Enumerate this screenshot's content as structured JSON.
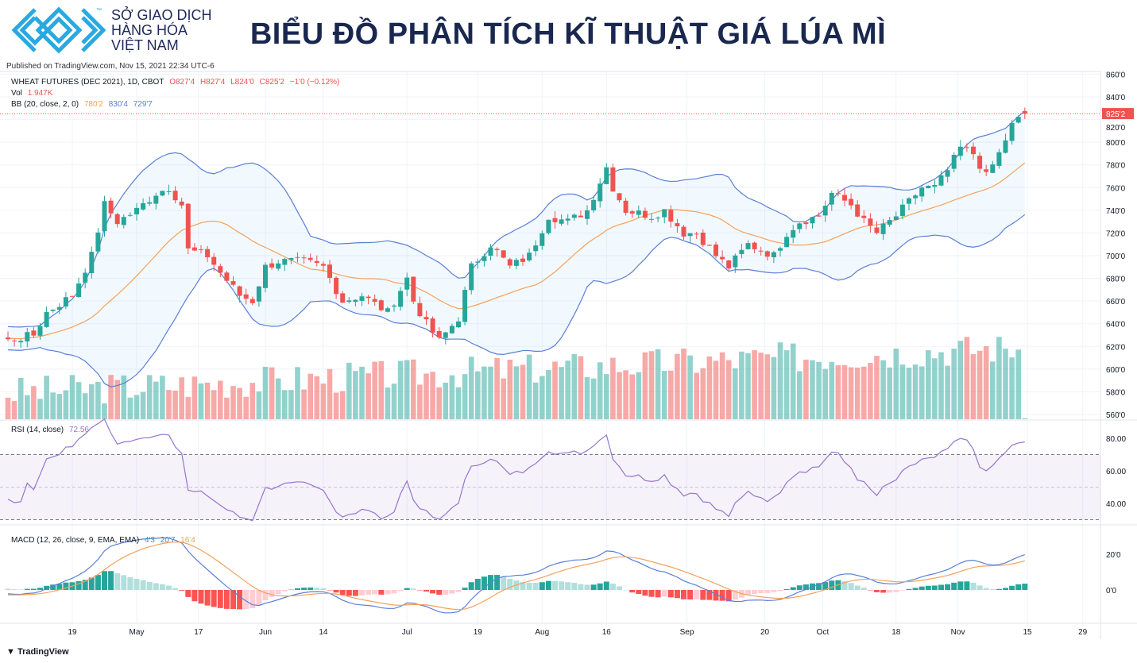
{
  "header": {
    "org_lines": [
      "SỞ GIAO DỊCH",
      "HÀNG HÓA",
      "VIỆT NAM"
    ],
    "trademark": "™",
    "title": "BIỂU ĐỒ PHÂN TÍCH KĨ THUẬT GIÁ LÚA MÌ",
    "published": "Published on TradingView.com, Nov 15, 2021 22:34 UTC-6"
  },
  "legend": {
    "symbol": "WHEAT FUTURES (DEC 2021), 1D, CBOT",
    "open": "O827'4",
    "high": "H827'4",
    "low": "L824'0",
    "close": "C825'2",
    "change": "−1'0 (−0.12%)",
    "vol_label": "Vol",
    "vol_value": "1.947K",
    "bb_label": "BB (20, close, 2, 0)",
    "bb_basis": "780'2",
    "bb_upper": "830'4",
    "bb_lower": "729'7",
    "rsi_label": "RSI (14, close)",
    "rsi_value": "72.56",
    "macd_label": "MACD (12, 26, close, 9, EMA, EMA)",
    "macd_hist": "4'3",
    "macd_line": "20'7",
    "macd_signal": "16'4"
  },
  "footer": {
    "brand": "TradingView"
  },
  "colors": {
    "up": "#26a69a",
    "down": "#ef5350",
    "bb_basis": "#f5a05a",
    "bb_band": "#5b7fd6",
    "rsi": "#9575cd",
    "macd": "#5b7fd6",
    "signal": "#f5a05a",
    "title": "#1a2850",
    "logo": "#29a9e0"
  },
  "chart_data": {
    "type": "candlestick",
    "symbol": "WHEAT FUTURES (DEC 2021)",
    "last_price_label": "825'2",
    "last_price": 825.25,
    "price_ticks": [
      "860'0",
      "840'0",
      "820'0",
      "800'0",
      "780'0",
      "760'0",
      "740'0",
      "720'0",
      "700'0",
      "680'0",
      "660'0",
      "640'0",
      "620'0",
      "600'0",
      "580'0",
      "560'0"
    ],
    "price_tick_values": [
      860,
      840,
      820,
      800,
      780,
      760,
      740,
      720,
      700,
      680,
      660,
      640,
      620,
      600,
      580,
      560
    ],
    "ylim": [
      557,
      866
    ],
    "rsi_ticks": [
      "80.00",
      "60.00",
      "40.00"
    ],
    "rsi_tick_values": [
      80,
      60,
      40
    ],
    "rsi_bands": [
      70,
      50,
      30
    ],
    "macd_ticks": [
      "20'0",
      "0'0"
    ],
    "macd_tick_values": [
      20,
      0
    ],
    "x_labels": [
      {
        "t": "19",
        "bar": 10
      },
      {
        "t": "May",
        "bar": 20
      },
      {
        "t": "17",
        "bar": 29.6
      },
      {
        "t": "Jun",
        "bar": 40
      },
      {
        "t": "14",
        "bar": 49
      },
      {
        "t": "Jul",
        "bar": 62
      },
      {
        "t": "19",
        "bar": 73
      },
      {
        "t": "Aug",
        "bar": 83
      },
      {
        "t": "16",
        "bar": 93
      },
      {
        "t": "Sep",
        "bar": 105.5
      },
      {
        "t": "20",
        "bar": 117.6
      },
      {
        "t": "Oct",
        "bar": 126.6
      },
      {
        "t": "18",
        "bar": 138
      },
      {
        "t": "Nov",
        "bar": 147.6
      },
      {
        "t": "15",
        "bar": 158.4
      },
      {
        "t": "29",
        "bar": 167
      }
    ],
    "close_keypoints": [
      [
        -30,
        650
      ],
      [
        -15,
        620
      ],
      [
        -5,
        635
      ],
      [
        0,
        625
      ],
      [
        4,
        630
      ],
      [
        6,
        650
      ],
      [
        10,
        665
      ],
      [
        13,
        700
      ],
      [
        15,
        745
      ],
      [
        17,
        730
      ],
      [
        20,
        740
      ],
      [
        23,
        755
      ],
      [
        25,
        760
      ],
      [
        27,
        745
      ],
      [
        28,
        705
      ],
      [
        31,
        700
      ],
      [
        33,
        685
      ],
      [
        36,
        665
      ],
      [
        38,
        660
      ],
      [
        40,
        690
      ],
      [
        42,
        695
      ],
      [
        46,
        695
      ],
      [
        49,
        690
      ],
      [
        52,
        660
      ],
      [
        55,
        665
      ],
      [
        59,
        650
      ],
      [
        62,
        680
      ],
      [
        63,
        660
      ],
      [
        65,
        640
      ],
      [
        67,
        625
      ],
      [
        70,
        645
      ],
      [
        72,
        690
      ],
      [
        75,
        710
      ],
      [
        78,
        690
      ],
      [
        81,
        700
      ],
      [
        84,
        735
      ],
      [
        87,
        730
      ],
      [
        90,
        740
      ],
      [
        93,
        778
      ],
      [
        94,
        760
      ],
      [
        96,
        740
      ],
      [
        100,
        735
      ],
      [
        102,
        740
      ],
      [
        105,
        720
      ],
      [
        107,
        720
      ],
      [
        110,
        700
      ],
      [
        112,
        690
      ],
      [
        115,
        710
      ],
      [
        119,
        700
      ],
      [
        121,
        720
      ],
      [
        123,
        730
      ],
      [
        126,
        735
      ],
      [
        128,
        755
      ],
      [
        131,
        745
      ],
      [
        133,
        730
      ],
      [
        135,
        720
      ],
      [
        138,
        735
      ],
      [
        142,
        760
      ],
      [
        144,
        760
      ],
      [
        146,
        775
      ],
      [
        148,
        795
      ],
      [
        150,
        790
      ],
      [
        152,
        770
      ],
      [
        154,
        790
      ],
      [
        156,
        815
      ],
      [
        158,
        825.25
      ]
    ]
  }
}
